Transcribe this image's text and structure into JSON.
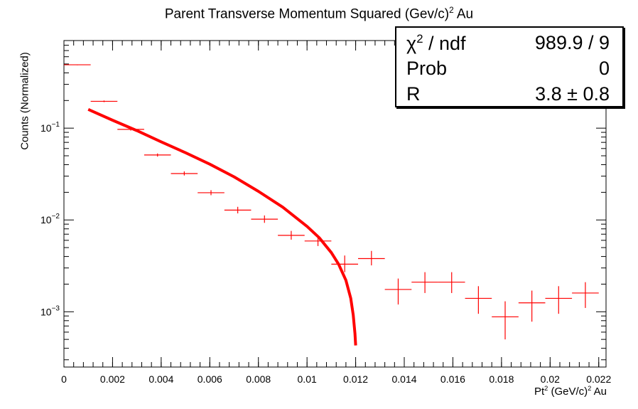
{
  "chart_data": {
    "type": "scatter",
    "title": "Parent Transverse Momentum Squared (Gev/c)",
    "title_sup": "2",
    "title_suffix": " Au",
    "xlabel": "Pt",
    "xlabel_sup1": "2",
    "xlabel_mid": " (GeV/c)",
    "xlabel_sup2": "2",
    "xlabel_suffix": " Au",
    "ylabel": "Counts (Normalized)",
    "xlim": [
      0,
      0.0223
    ],
    "ylim": [
      0.00025,
      0.9
    ],
    "yscale": "log",
    "grid": false,
    "x_ticks": [
      "0",
      "0.002",
      "0.004",
      "0.006",
      "0.008",
      "0.01",
      "0.012",
      "0.014",
      "0.016",
      "0.018",
      "0.02",
      "0.022"
    ],
    "y_ticks": [
      {
        "base": "10",
        "exp": "−1",
        "value": 0.1
      },
      {
        "base": "10",
        "exp": "−2",
        "value": 0.01
      },
      {
        "base": "10",
        "exp": "−3",
        "value": 0.001
      }
    ],
    "colors": {
      "data": "#ff0000",
      "fit": "#ff0000",
      "axis": "#000000"
    },
    "bin_half_width": 0.00055,
    "series": [
      {
        "type": "errorbar",
        "points": [
          {
            "x": 0.00055,
            "y": 0.49,
            "ylo": 0.485,
            "yhi": 0.495
          },
          {
            "x": 0.00165,
            "y": 0.196,
            "ylo": 0.192,
            "yhi": 0.2
          },
          {
            "x": 0.00275,
            "y": 0.097,
            "ylo": 0.094,
            "yhi": 0.1
          },
          {
            "x": 0.00385,
            "y": 0.051,
            "ylo": 0.049,
            "yhi": 0.053
          },
          {
            "x": 0.00495,
            "y": 0.032,
            "ylo": 0.0305,
            "yhi": 0.0338
          },
          {
            "x": 0.00605,
            "y": 0.0198,
            "ylo": 0.0186,
            "yhi": 0.0211
          },
          {
            "x": 0.00715,
            "y": 0.0128,
            "ylo": 0.0118,
            "yhi": 0.0139
          },
          {
            "x": 0.00825,
            "y": 0.0102,
            "ylo": 0.0093,
            "yhi": 0.0112
          },
          {
            "x": 0.00935,
            "y": 0.0068,
            "ylo": 0.0061,
            "yhi": 0.0076
          },
          {
            "x": 0.01045,
            "y": 0.0059,
            "ylo": 0.0052,
            "yhi": 0.0067
          },
          {
            "x": 0.01155,
            "y": 0.0033,
            "ylo": 0.0027,
            "yhi": 0.0041
          },
          {
            "x": 0.01265,
            "y": 0.0038,
            "ylo": 0.0032,
            "yhi": 0.0046
          },
          {
            "x": 0.01375,
            "y": 0.00175,
            "ylo": 0.0012,
            "yhi": 0.0023
          },
          {
            "x": 0.01485,
            "y": 0.0021,
            "ylo": 0.0016,
            "yhi": 0.0027
          },
          {
            "x": 0.01595,
            "y": 0.0021,
            "ylo": 0.0016,
            "yhi": 0.0027
          },
          {
            "x": 0.01705,
            "y": 0.0014,
            "ylo": 0.00095,
            "yhi": 0.0019
          },
          {
            "x": 0.01815,
            "y": 0.00088,
            "ylo": 0.0005,
            "yhi": 0.0013
          },
          {
            "x": 0.01925,
            "y": 0.00125,
            "ylo": 0.00078,
            "yhi": 0.0017
          },
          {
            "x": 0.02035,
            "y": 0.0014,
            "ylo": 0.00095,
            "yhi": 0.0019
          },
          {
            "x": 0.02145,
            "y": 0.0016,
            "ylo": 0.0011,
            "yhi": 0.0021
          }
        ]
      },
      {
        "type": "fit-curve",
        "points": [
          {
            "x": 0.001,
            "y": 0.16
          },
          {
            "x": 0.002,
            "y": 0.122
          },
          {
            "x": 0.003,
            "y": 0.094
          },
          {
            "x": 0.004,
            "y": 0.071
          },
          {
            "x": 0.005,
            "y": 0.054
          },
          {
            "x": 0.006,
            "y": 0.0405
          },
          {
            "x": 0.007,
            "y": 0.0295
          },
          {
            "x": 0.008,
            "y": 0.0205
          },
          {
            "x": 0.009,
            "y": 0.0138
          },
          {
            "x": 0.01,
            "y": 0.0085
          },
          {
            "x": 0.0105,
            "y": 0.0064
          },
          {
            "x": 0.011,
            "y": 0.0044
          },
          {
            "x": 0.0113,
            "y": 0.0033
          },
          {
            "x": 0.0116,
            "y": 0.0022
          },
          {
            "x": 0.0118,
            "y": 0.0014
          },
          {
            "x": 0.0119,
            "y": 0.00092
          },
          {
            "x": 0.01197,
            "y": 0.00058
          },
          {
            "x": 0.012,
            "y": 0.00043
          }
        ]
      }
    ],
    "stats_box": {
      "chi_symbol": "χ",
      "chi_sup": "2",
      "chi_label_suffix": " / ndf",
      "chi_value": "989.9 / 9",
      "prob_label": "Prob",
      "prob_value": "0",
      "r_label": "R",
      "r_value": "3.8 ± 0.8"
    }
  }
}
